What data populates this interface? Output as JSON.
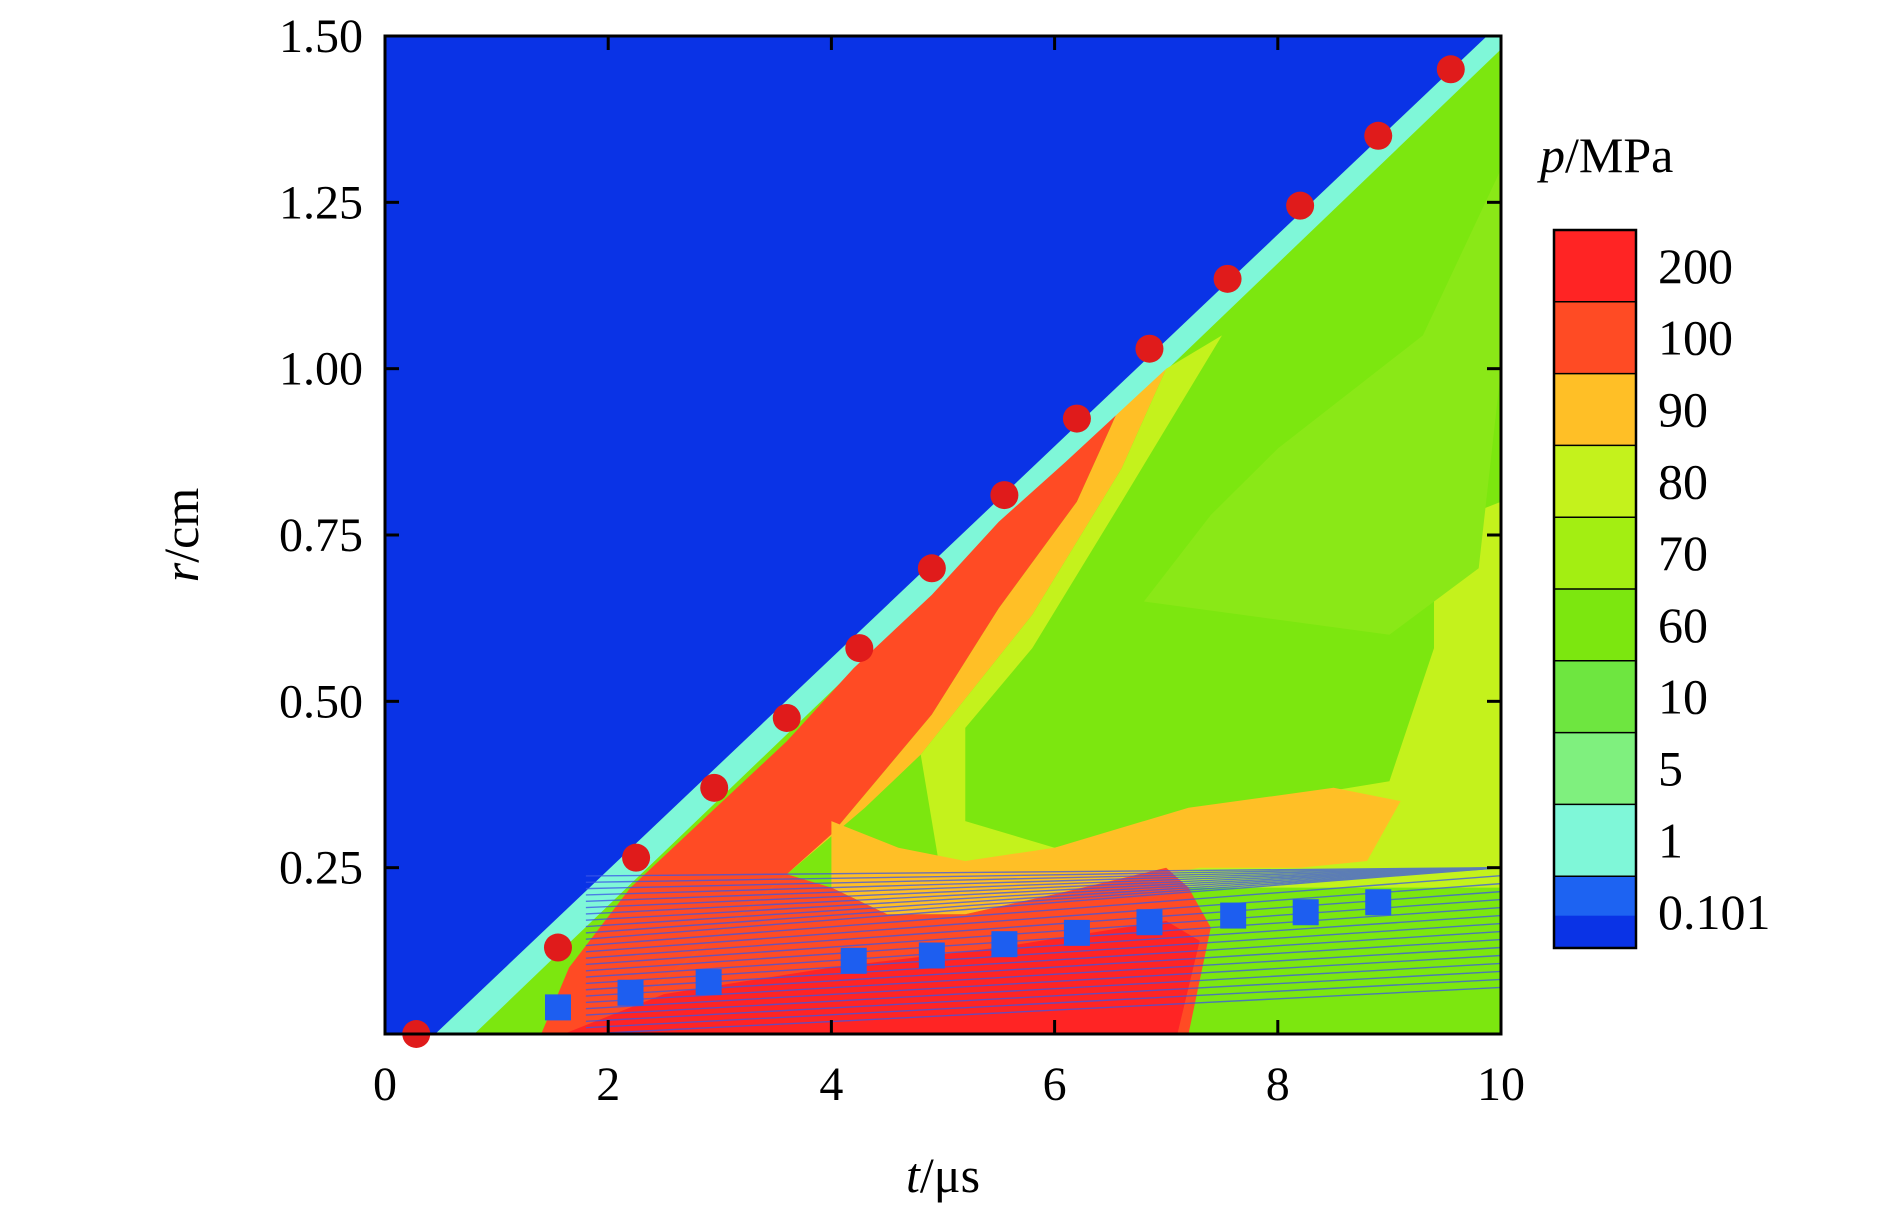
{
  "chart_data": {
    "type": "heatmap",
    "title": "",
    "xlabel": {
      "var": "t",
      "unit": "/μs"
    },
    "ylabel": {
      "var": "r",
      "unit": "/cm"
    },
    "xlim": [
      0,
      10
    ],
    "ylim": [
      0,
      1.5
    ],
    "x_ticks": [
      "0",
      "2",
      "4",
      "6",
      "8",
      "10"
    ],
    "x_tick_values": [
      0,
      2,
      4,
      6,
      8,
      10
    ],
    "y_ticks": [
      "0.25",
      "0.50",
      "0.75",
      "1.00",
      "1.25",
      "1.50"
    ],
    "y_tick_values": [
      0.25,
      0.5,
      0.75,
      1.0,
      1.25,
      1.5
    ],
    "grid": false,
    "colorbar": {
      "title_var": "p",
      "title_unit": "/MPa",
      "levels": [
        {
          "label": "200",
          "color": "#ff2424"
        },
        {
          "label": "100",
          "color": "#ff4b24"
        },
        {
          "label": "90",
          "color": "#ffbf26"
        },
        {
          "label": "80",
          "color": "#c4f21c"
        },
        {
          "label": "70",
          "color": "#a3ee12"
        },
        {
          "label": "60",
          "color": "#7ce70f"
        },
        {
          "label": "10",
          "color": "#6ee640"
        },
        {
          "label": "5",
          "color": "#7ff07e"
        },
        {
          "label": "1",
          "color": "#7ff7d8"
        },
        {
          "label": "0.101",
          "color": "#1d63f2"
        }
      ],
      "bottom_color": "#0a33e6"
    },
    "field_colors": {
      "ambient": "#0a33e6",
      "front_edge": "#7ff7d8",
      "shock": "#ff4b24",
      "peak": "#ff2424",
      "high": "#ffbf26",
      "mid": "#c4f21c",
      "low": "#7ce70f"
    },
    "marker_series": [
      {
        "marker": "circle",
        "color": "#e01b1b",
        "x": [
          0.28,
          1.55,
          2.25,
          2.95,
          3.6,
          4.25,
          4.9,
          5.55,
          6.2,
          6.85,
          7.55,
          8.2,
          8.9,
          9.55
        ],
        "y": [
          0.0,
          0.13,
          0.265,
          0.37,
          0.475,
          0.58,
          0.7,
          0.81,
          0.925,
          1.03,
          1.135,
          1.245,
          1.35,
          1.45
        ]
      },
      {
        "marker": "square",
        "color": "#1d5ef0",
        "x": [
          1.55,
          2.2,
          2.9,
          4.2,
          4.9,
          5.55,
          6.2,
          6.85,
          7.6,
          8.25,
          8.9
        ],
        "y": [
          0.04,
          0.062,
          0.078,
          0.11,
          0.118,
          0.135,
          0.152,
          0.168,
          0.178,
          0.183,
          0.198
        ]
      }
    ]
  }
}
